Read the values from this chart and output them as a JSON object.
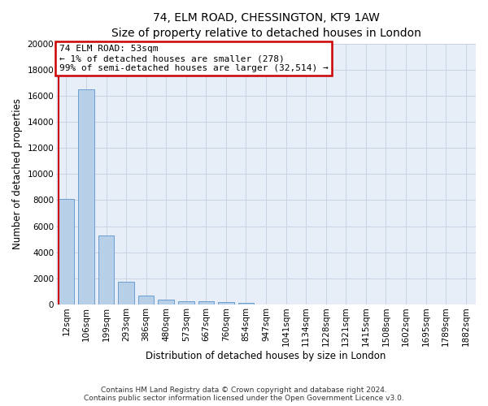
{
  "title": "74, ELM ROAD, CHESSINGTON, KT9 1AW",
  "subtitle": "Size of property relative to detached houses in London",
  "xlabel": "Distribution of detached houses by size in London",
  "ylabel": "Number of detached properties",
  "categories": [
    "12sqm",
    "106sqm",
    "199sqm",
    "293sqm",
    "386sqm",
    "480sqm",
    "573sqm",
    "667sqm",
    "760sqm",
    "854sqm",
    "947sqm",
    "1041sqm",
    "1134sqm",
    "1228sqm",
    "1321sqm",
    "1415sqm",
    "1508sqm",
    "1602sqm",
    "1695sqm",
    "1789sqm",
    "1882sqm"
  ],
  "values": [
    8100,
    16500,
    5300,
    1750,
    650,
    340,
    275,
    215,
    165,
    135,
    0,
    0,
    0,
    0,
    0,
    0,
    0,
    0,
    0,
    0,
    0
  ],
  "bar_color": "#b8cfe8",
  "bar_edge_color": "#6a9fd0",
  "annotation_line1": "74 ELM ROAD: 53sqm",
  "annotation_line2": "← 1% of detached houses are smaller (278)",
  "annotation_line3": "99% of semi-detached houses are larger (32,514) →",
  "ylim_max": 20000,
  "yticks": [
    0,
    2000,
    4000,
    6000,
    8000,
    10000,
    12000,
    14000,
    16000,
    18000,
    20000
  ],
  "footnote1": "Contains HM Land Registry data © Crown copyright and database right 2024.",
  "footnote2": "Contains public sector information licensed under the Open Government Licence v3.0.",
  "bg_color": "#e8eef8",
  "grid_color": "#c8d4e4",
  "marker_color": "#cc0000",
  "box_edge_color": "#cc0000",
  "title_fontsize": 10,
  "subtitle_fontsize": 9,
  "axis_label_fontsize": 8.5,
  "tick_fontsize": 7.5,
  "annotation_fontsize": 8,
  "footnote_fontsize": 6.5
}
